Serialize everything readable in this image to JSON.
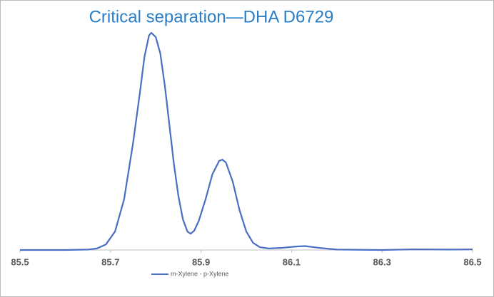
{
  "chart_data": {
    "type": "line",
    "title": "Critical separation—DHA D6729",
    "x": [
      85.5,
      85.55,
      85.6,
      85.65,
      85.67,
      85.69,
      85.71,
      85.73,
      85.75,
      85.765,
      85.775,
      85.785,
      85.79,
      85.8,
      85.81,
      85.82,
      85.83,
      85.84,
      85.85,
      85.86,
      85.87,
      85.877,
      85.885,
      85.895,
      85.91,
      85.925,
      85.94,
      85.947,
      85.955,
      85.97,
      85.985,
      86.0,
      86.015,
      86.03,
      86.05,
      86.08,
      86.11,
      86.13,
      86.16,
      86.2,
      86.3,
      86.37,
      86.45,
      86.5
    ],
    "series": [
      {
        "name": "m-Xylene - p-Xylene",
        "color": "#4a6fc2",
        "values": [
          0,
          0,
          0,
          0.2,
          0.7,
          2.6,
          8.5,
          23.3,
          49.5,
          72.5,
          88.9,
          98.7,
          100,
          98,
          90.5,
          75.7,
          57.7,
          39.7,
          24.9,
          14.1,
          8.5,
          7.5,
          8.9,
          13.4,
          23.3,
          34.8,
          41.0,
          41.6,
          40.3,
          31.5,
          18.4,
          8.5,
          3.3,
          1.3,
          0.7,
          1.0,
          1.6,
          1.8,
          1.0,
          0.2,
          0,
          0.3,
          0.2,
          0.3
        ]
      }
    ],
    "xlim": [
      85.5,
      86.5
    ],
    "xticks": [
      85.5,
      85.7,
      85.9,
      86.1,
      86.3,
      86.5
    ],
    "ylim": [
      0,
      100
    ],
    "legend": "bottom"
  }
}
